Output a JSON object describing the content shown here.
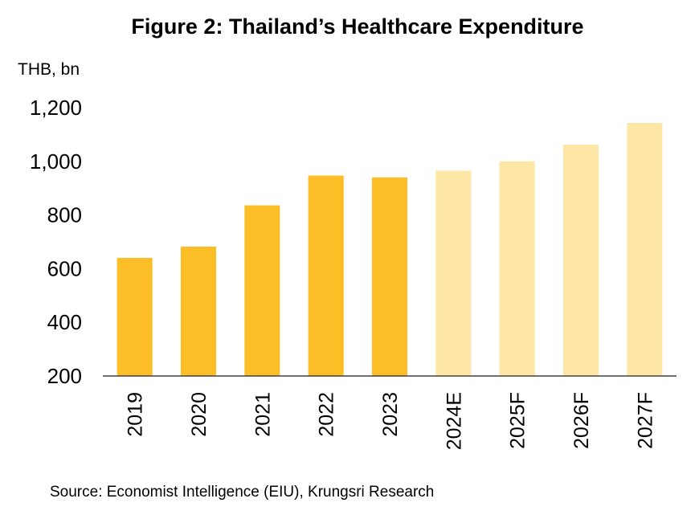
{
  "title": "Figure 2: Thailand’s Healthcare Expenditure",
  "unit_label": "THB, bn",
  "source": "Source: Economist Intelligence (EIU), Krungsri Research",
  "colors": {
    "actual": "#FBBE26",
    "forecast": "#FDE6A6",
    "axis": "#404040"
  },
  "chart_data": {
    "type": "bar",
    "categories": [
      "2019",
      "2020",
      "2021",
      "2022",
      "2023",
      "2024E",
      "2025F",
      "2026F",
      "2027F"
    ],
    "values": [
      640,
      682,
      836,
      947,
      940,
      965,
      1000,
      1062,
      1143
    ],
    "forecast": [
      false,
      false,
      false,
      false,
      false,
      true,
      true,
      true,
      true
    ],
    "ylabel": "THB, bn",
    "yticks": [
      200,
      400,
      600,
      800,
      1000,
      1200
    ],
    "ytick_labels": [
      "200",
      "400",
      "600",
      "800",
      "1,000",
      "1,200"
    ],
    "ylim": [
      200,
      1200
    ],
    "grid": false,
    "legend": "none"
  }
}
